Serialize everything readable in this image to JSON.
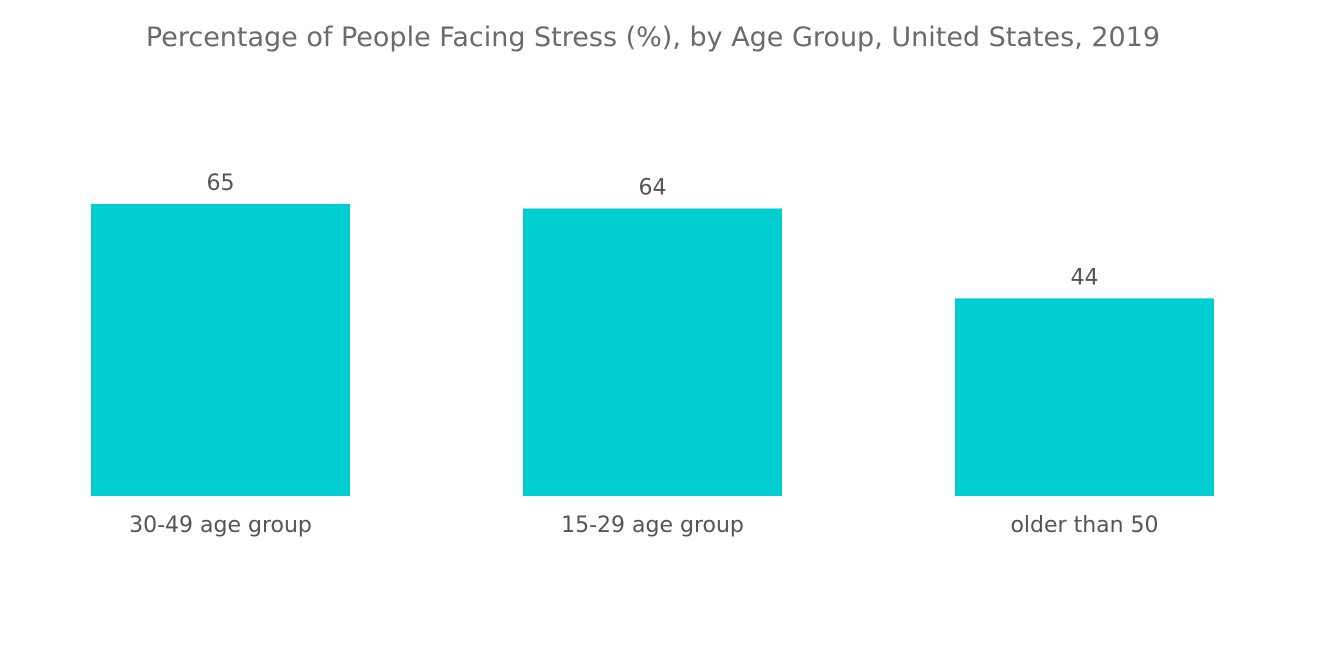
{
  "chart_data": {
    "type": "bar",
    "title": "Percentage of People Facing Stress (%), by Age Group, United States, 2019",
    "categories": [
      "30-49 age group",
      "15-29 age group",
      "older than 50"
    ],
    "values": [
      65,
      64,
      44
    ],
    "data_labels": [
      "65",
      "64",
      "44"
    ],
    "xlabel": "",
    "ylabel": "",
    "ylim": [
      0,
      65
    ],
    "grid": false,
    "legend": "none",
    "bar_color": "#00CED1"
  }
}
